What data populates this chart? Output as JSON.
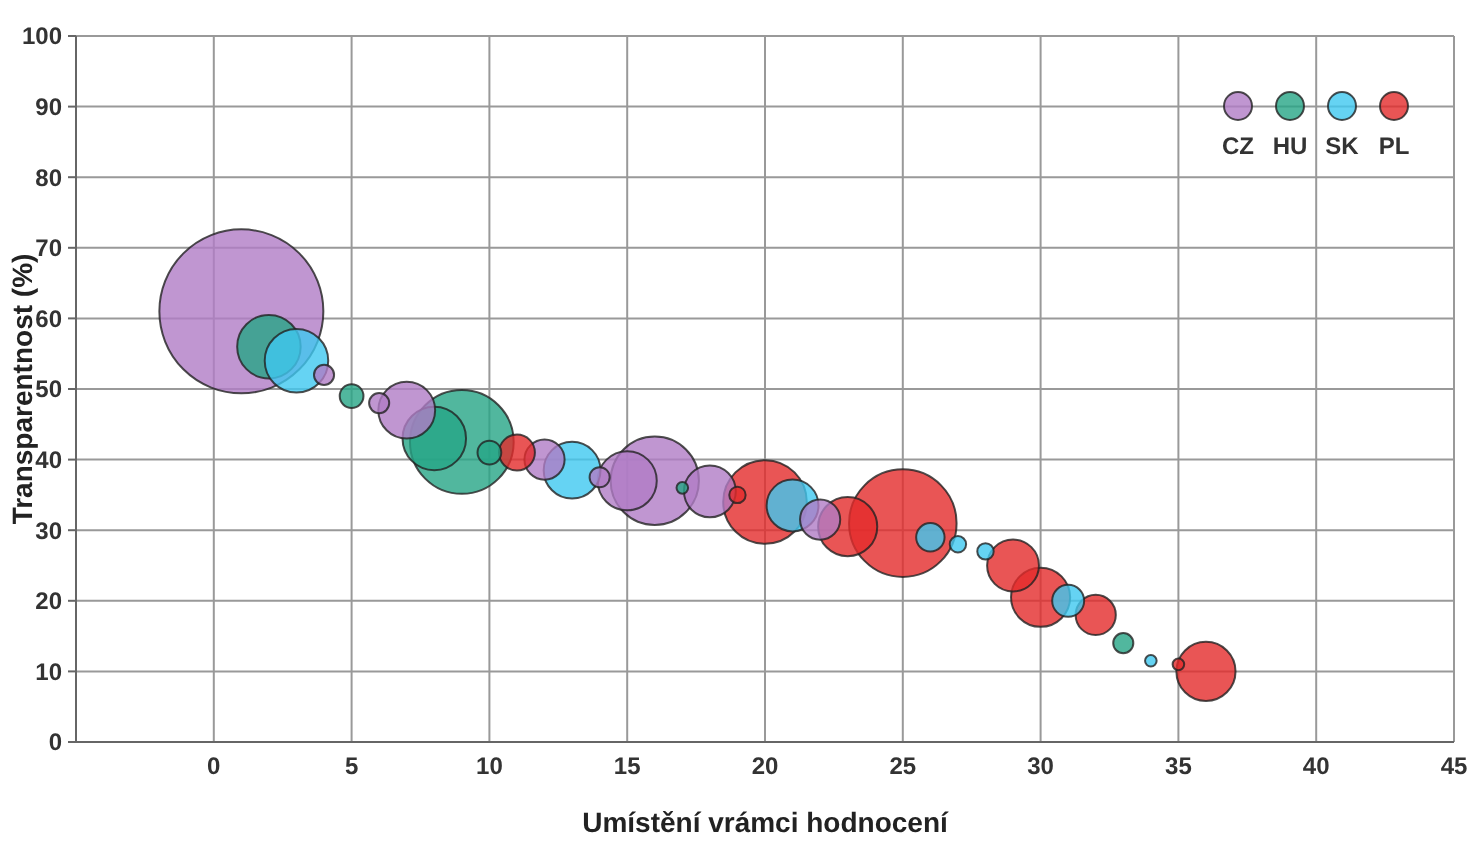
{
  "chart_data": {
    "type": "bubble",
    "xlabel": "Umístění vrámci hodnocení",
    "ylabel": "Transparentnost (%)",
    "xlim": [
      -5,
      45
    ],
    "ylim": [
      0,
      100
    ],
    "xticks": [
      0,
      5,
      10,
      15,
      20,
      25,
      30,
      35,
      40,
      45
    ],
    "yticks": [
      0,
      10,
      20,
      30,
      40,
      50,
      60,
      70,
      80,
      90,
      100
    ],
    "grid": true,
    "legend": "top right",
    "series": [
      {
        "name": "CZ",
        "color": "#b07cc6",
        "x": [
          1,
          4,
          6,
          7,
          12,
          14,
          15,
          16,
          18,
          22
        ],
        "values": [
          61,
          52,
          48,
          47,
          40,
          37.5,
          37,
          37,
          35.5,
          31.5
        ],
        "sizes": [
          1,
          0.015,
          0.015,
          0.12,
          0.06,
          0.015,
          0.13,
          0.29,
          0.1,
          0.06
        ]
      },
      {
        "name": "HU",
        "color": "#26a586",
        "x": [
          2,
          5,
          8,
          9,
          10,
          17,
          33
        ],
        "values": [
          56,
          49,
          43,
          42.5,
          41,
          36,
          14
        ],
        "sizes": [
          0.15,
          0.021,
          0.15,
          0.4,
          0.021,
          0.005,
          0.015
        ]
      },
      {
        "name": "SK",
        "color": "#3fc8f0",
        "x": [
          3,
          13,
          21,
          26,
          27,
          28,
          31,
          34
        ],
        "values": [
          54,
          38.5,
          33.5,
          29,
          28,
          27,
          20,
          11.5
        ],
        "sizes": [
          0.15,
          0.12,
          0.1,
          0.03,
          0.01,
          0.01,
          0.038,
          0.005
        ]
      },
      {
        "name": "PL",
        "color": "#e32a2a",
        "x": [
          11,
          19,
          20,
          23,
          25,
          29,
          30,
          32,
          35,
          36
        ],
        "values": [
          41,
          35,
          34,
          30.5,
          31,
          25,
          20.5,
          18,
          11,
          10
        ],
        "sizes": [
          0.048,
          0.01,
          0.26,
          0.13,
          0.43,
          0.1,
          0.13,
          0.06,
          0.005,
          0.13
        ]
      }
    ]
  }
}
